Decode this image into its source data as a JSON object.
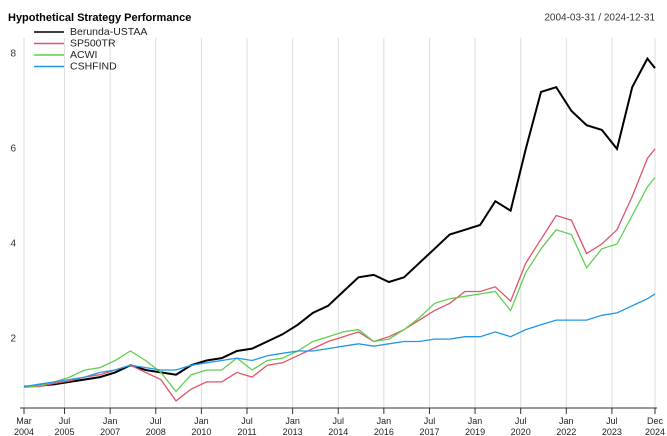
{
  "chart_data": {
    "type": "line",
    "title": "Hypothetical Strategy Performance",
    "subtitle": "2004-03-31 / 2024-12-31",
    "x": [
      "2004-03",
      "2004-09",
      "2005-03",
      "2005-09",
      "2006-03",
      "2006-09",
      "2007-03",
      "2007-09",
      "2008-03",
      "2008-09",
      "2009-03",
      "2009-09",
      "2010-03",
      "2010-09",
      "2011-03",
      "2011-09",
      "2012-03",
      "2012-09",
      "2013-03",
      "2013-09",
      "2014-03",
      "2014-09",
      "2015-03",
      "2015-09",
      "2016-03",
      "2016-09",
      "2017-03",
      "2017-09",
      "2018-03",
      "2018-09",
      "2019-03",
      "2019-09",
      "2020-03",
      "2020-09",
      "2021-03",
      "2021-09",
      "2022-03",
      "2022-09",
      "2023-03",
      "2023-09",
      "2024-03",
      "2024-09",
      "2024-12"
    ],
    "series": [
      {
        "name": "Berunda-USTAA",
        "color": "#000000",
        "values": [
          1.0,
          1.02,
          1.05,
          1.1,
          1.15,
          1.2,
          1.3,
          1.45,
          1.35,
          1.3,
          1.25,
          1.45,
          1.55,
          1.6,
          1.75,
          1.8,
          1.95,
          2.1,
          2.3,
          2.55,
          2.7,
          3.0,
          3.3,
          3.35,
          3.2,
          3.3,
          3.6,
          3.9,
          4.2,
          4.3,
          4.4,
          4.9,
          4.7,
          6.0,
          7.2,
          7.3,
          6.8,
          6.5,
          6.4,
          6.0,
          7.3,
          7.9,
          7.7
        ]
      },
      {
        "name": "SP500TR",
        "color": "#df536b",
        "values": [
          1.0,
          1.0,
          1.07,
          1.12,
          1.2,
          1.25,
          1.35,
          1.45,
          1.3,
          1.15,
          0.7,
          0.95,
          1.1,
          1.1,
          1.3,
          1.2,
          1.45,
          1.5,
          1.65,
          1.8,
          1.95,
          2.05,
          2.15,
          1.95,
          2.05,
          2.2,
          2.4,
          2.6,
          2.75,
          3.0,
          3.0,
          3.1,
          2.8,
          3.6,
          4.1,
          4.6,
          4.5,
          3.8,
          4.0,
          4.3,
          5.0,
          5.8,
          6.0
        ]
      },
      {
        "name": "ACWI",
        "color": "#61d04f",
        "values": [
          1.0,
          1.02,
          1.1,
          1.2,
          1.35,
          1.4,
          1.55,
          1.75,
          1.55,
          1.3,
          0.9,
          1.25,
          1.35,
          1.35,
          1.6,
          1.35,
          1.55,
          1.6,
          1.75,
          1.95,
          2.05,
          2.15,
          2.2,
          1.95,
          2.0,
          2.2,
          2.45,
          2.75,
          2.85,
          2.9,
          2.95,
          3.0,
          2.6,
          3.4,
          3.9,
          4.3,
          4.2,
          3.5,
          3.9,
          4.0,
          4.6,
          5.2,
          5.4
        ]
      },
      {
        "name": "CSHFIND",
        "color": "#2297e6",
        "values": [
          1.0,
          1.05,
          1.1,
          1.15,
          1.2,
          1.3,
          1.35,
          1.45,
          1.4,
          1.35,
          1.35,
          1.45,
          1.5,
          1.55,
          1.6,
          1.55,
          1.65,
          1.7,
          1.75,
          1.75,
          1.8,
          1.85,
          1.9,
          1.85,
          1.9,
          1.95,
          1.95,
          2.0,
          2.0,
          2.05,
          2.05,
          2.15,
          2.05,
          2.2,
          2.3,
          2.4,
          2.4,
          2.4,
          2.5,
          2.55,
          2.7,
          2.85,
          2.95
        ]
      }
    ],
    "xlim": [
      "2004-03",
      "2024-12"
    ],
    "xticks": [
      {
        "value": "2004-03",
        "label": "Mar 2004"
      },
      {
        "value": "2005-07",
        "label": "Jul 2005"
      },
      {
        "value": "2007-01",
        "label": "Jan 2007"
      },
      {
        "value": "2008-07",
        "label": "Jul 2008"
      },
      {
        "value": "2010-01",
        "label": "Jan 2010"
      },
      {
        "value": "2011-07",
        "label": "Jul 2011"
      },
      {
        "value": "2013-01",
        "label": "Jan 2013"
      },
      {
        "value": "2014-07",
        "label": "Jul 2014"
      },
      {
        "value": "2016-01",
        "label": "Jan 2016"
      },
      {
        "value": "2017-07",
        "label": "Jul 2017"
      },
      {
        "value": "2019-01",
        "label": "Jan 2019"
      },
      {
        "value": "2020-07",
        "label": "Jul 2020"
      },
      {
        "value": "2022-01",
        "label": "Jan 2022"
      },
      {
        "value": "2023-07",
        "label": "Jul 2023"
      },
      {
        "value": "2024-12",
        "label": "Dec 2024"
      }
    ],
    "ylim": [
      0.55,
      8.25
    ],
    "yticks": [
      2,
      4,
      6,
      8
    ],
    "grid": true,
    "legend": "topleft"
  }
}
